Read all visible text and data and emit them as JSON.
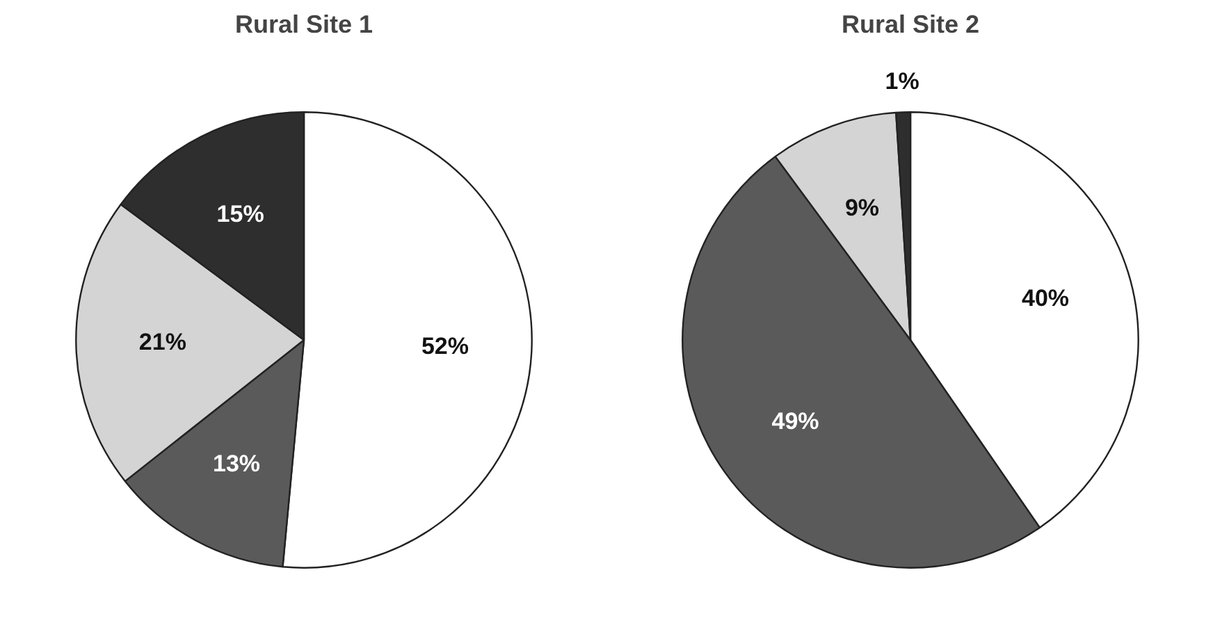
{
  "chart_data": [
    {
      "type": "pie",
      "title": "Rural Site 1",
      "categories": [
        null,
        null,
        null,
        null
      ],
      "values": [
        52,
        13,
        21,
        15
      ],
      "colors": [
        "#ffffff",
        "#5a5a5a",
        "#d4d4d4",
        "#2e2e2e"
      ],
      "value_labels": [
        "52%",
        "13%",
        "21%",
        "15%"
      ]
    },
    {
      "type": "pie",
      "title": "Rural Site 2",
      "categories": [
        null,
        null,
        null,
        null
      ],
      "values": [
        40,
        49,
        9,
        1
      ],
      "colors": [
        "#ffffff",
        "#5a5a5a",
        "#d4d4d4",
        "#2e2e2e"
      ],
      "value_labels": [
        "40%",
        "49%",
        "9%",
        "1%"
      ]
    }
  ]
}
